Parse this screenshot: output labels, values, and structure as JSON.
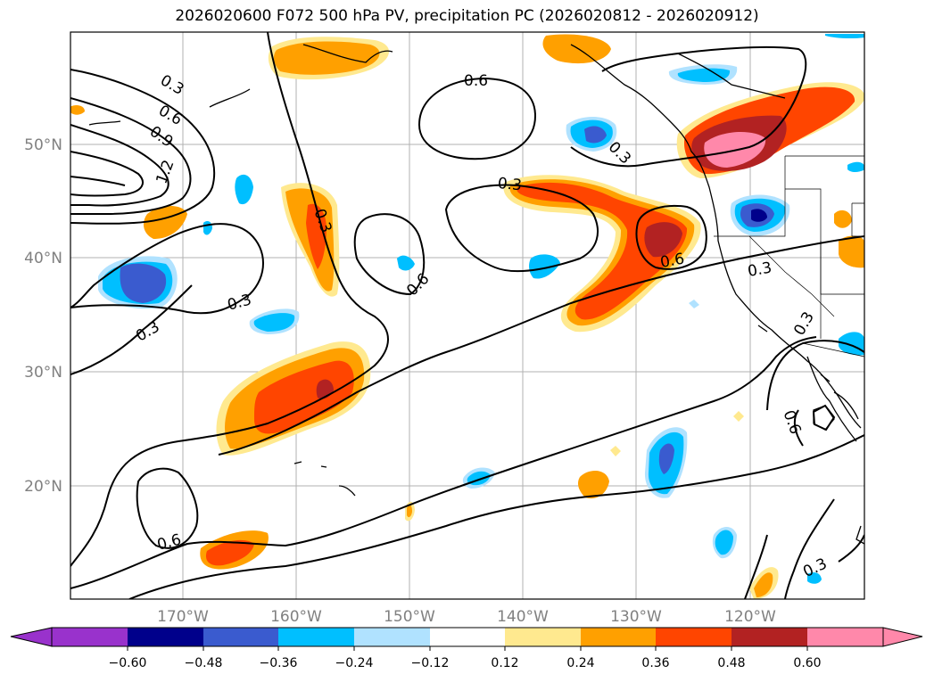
{
  "title": "2026020600 F072 500 hPa PV, precipitation PC (2026020812 - 2026020912)",
  "map": {
    "longitude_labels": [
      "170°W",
      "160°W",
      "150°W",
      "140°W",
      "130°W",
      "120°W"
    ],
    "latitude_labels": [
      "50°N",
      "40°N",
      "30°N",
      "20°N"
    ],
    "contour_labels": [
      "0.3",
      "0.6",
      "0.9",
      "1.2",
      "0.3",
      "0.3",
      "0.6",
      "0.3",
      "0.6",
      "0.3",
      "0.3",
      "0.6",
      "0.3",
      "0.3",
      "0.6",
      "0.6",
      "0.3"
    ]
  },
  "colorbar": {
    "ticks": [
      "−0.60",
      "−0.48",
      "−0.36",
      "−0.24",
      "−0.12",
      "0.12",
      "0.24",
      "0.36",
      "0.48",
      "0.60"
    ],
    "colors": [
      "#9932cc",
      "#00008b",
      "#3a5bcf",
      "#00bfff",
      "#b0e2ff",
      "#ffffff",
      "#ffe98f",
      "#ffa000",
      "#ff4500",
      "#b22222",
      "#ff88aa"
    ]
  }
}
